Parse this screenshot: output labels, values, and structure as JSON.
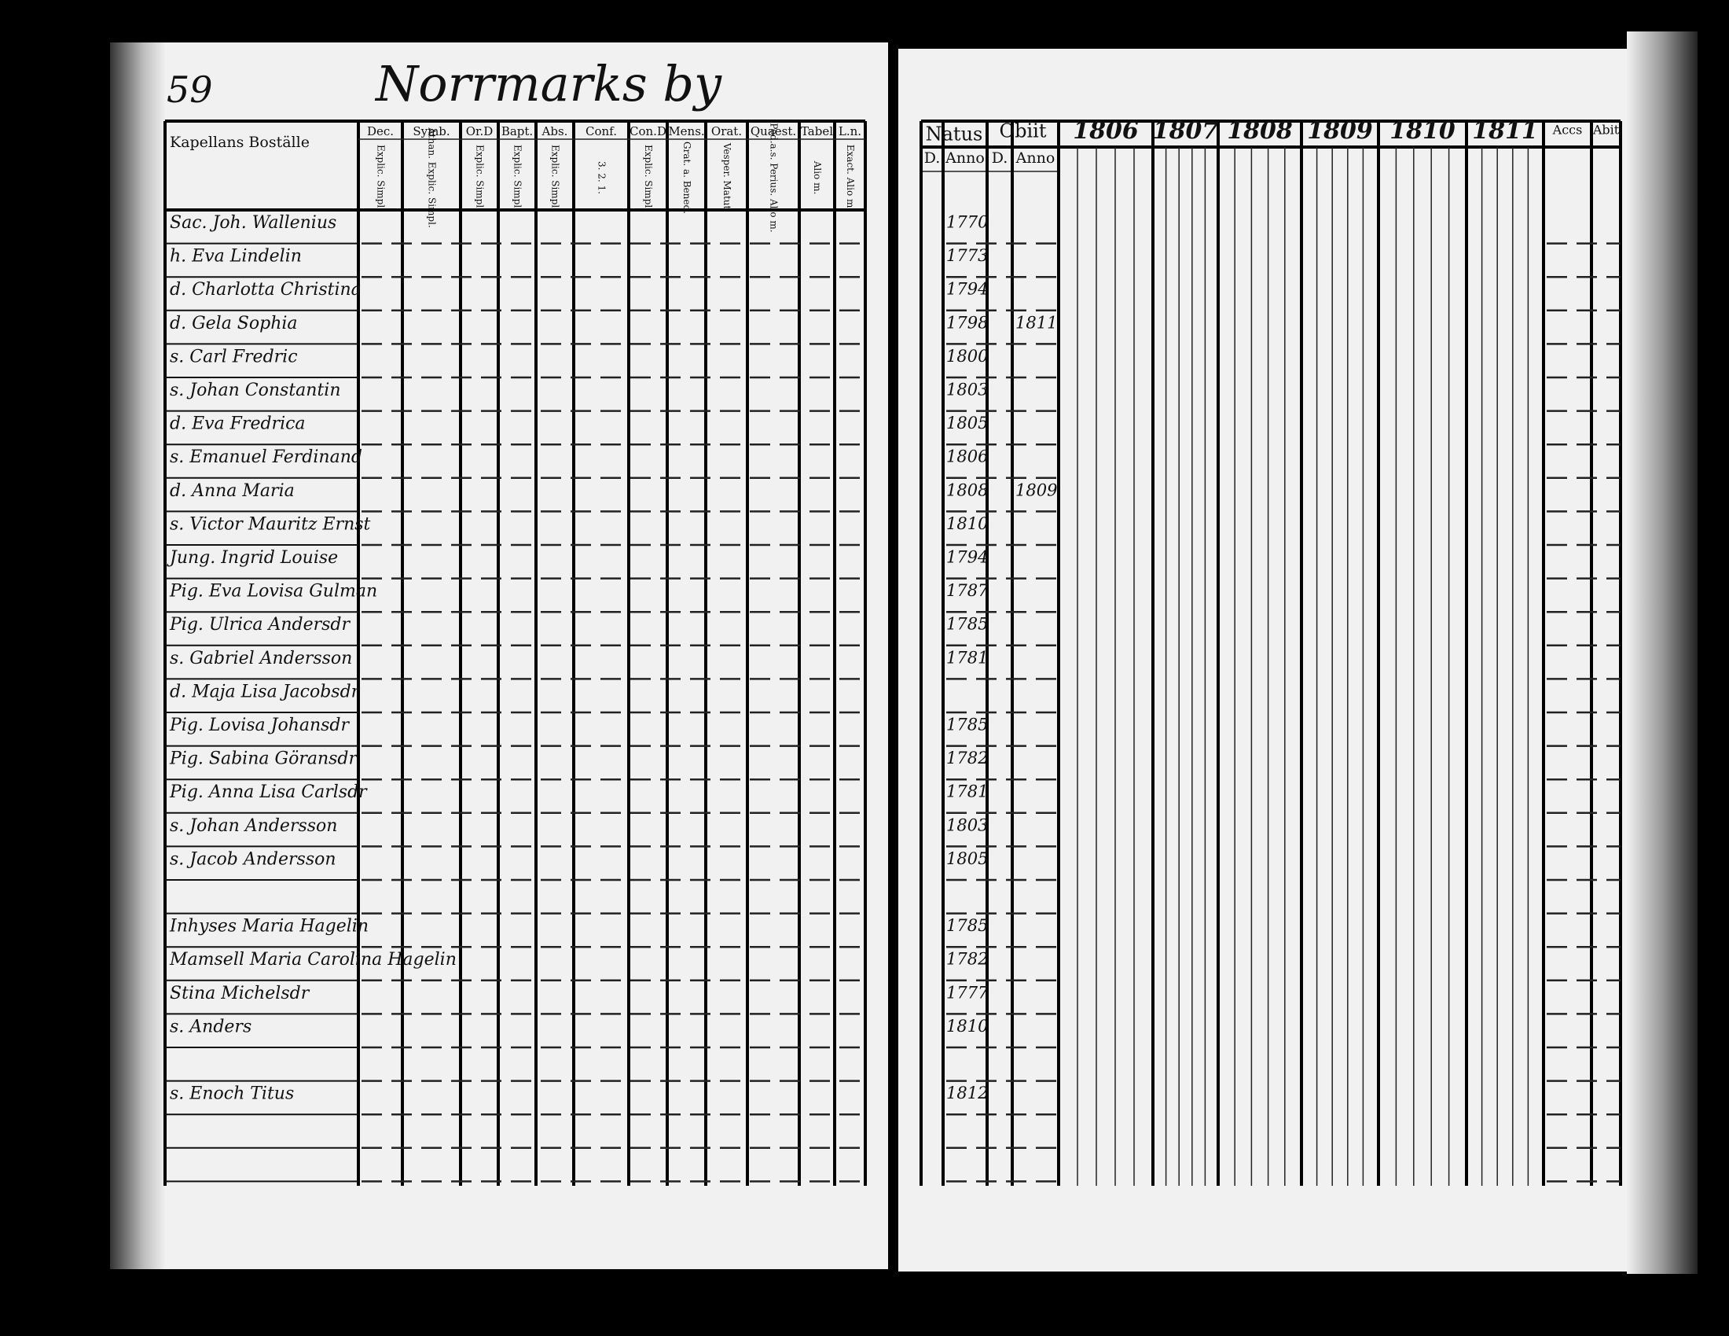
{
  "page_number": "59",
  "place_title": "Norrmarks by",
  "left": {
    "name_heading": "Kapellans Boställe",
    "columns": [
      {
        "title": "Dec.",
        "sub": "Explic. Simpl."
      },
      {
        "title": "Symb.",
        "sub": "Athan. Explic. Simpl."
      },
      {
        "title": "Or.D",
        "sub": "Explic. Simpl."
      },
      {
        "title": "Bapt.",
        "sub": "Explic. Simpl."
      },
      {
        "title": "Abs.",
        "sub": "Explic. Simpl."
      },
      {
        "title": "Conf.",
        "sub": "3. 2. 1."
      },
      {
        "title": "Con.D",
        "sub": "Explic. Simpl."
      },
      {
        "title": "Mens.",
        "sub": "Grat. a. Bened."
      },
      {
        "title": "Orat.",
        "sub": "Vesper. Matut."
      },
      {
        "title": "Quaest.",
        "sub": "Ped.a.s. Perius. Alio m."
      },
      {
        "title": "Tabel",
        "sub": "Alio m."
      },
      {
        "title": "L.n.",
        "sub": "Exact. Alio m."
      }
    ]
  },
  "right": {
    "natus": "Natus",
    "obiit": "Obiit",
    "day": "D.",
    "anno": "Anno",
    "years": [
      "1806",
      "1807",
      "1808",
      "1809",
      "1810",
      "1811"
    ],
    "accessit": "Accs",
    "abiit": "Abit"
  },
  "rows": [
    {
      "name": "Sac. Joh. Wallenius",
      "anno": "1770"
    },
    {
      "name": "h. Eva Lindelin",
      "anno": "1773"
    },
    {
      "name": "d. Charlotta Christina",
      "anno": "1794"
    },
    {
      "name": "d. Gela Sophia",
      "anno": "1798",
      "obiit": "1811"
    },
    {
      "name": "s. Carl Fredric",
      "anno": "1800"
    },
    {
      "name": "s. Johan Constantin",
      "anno": "1803"
    },
    {
      "name": "d. Eva Fredrica",
      "anno": "1805"
    },
    {
      "name": "s. Emanuel Ferdinand",
      "anno": "1806"
    },
    {
      "name": "d. Anna Maria",
      "anno": "1808",
      "obiit": "1809"
    },
    {
      "name": "s. Victor Mauritz Ernst",
      "anno": "1810"
    },
    {
      "name": "Jung. Ingrid Louise",
      "anno": "1794"
    },
    {
      "name": "Pig. Eva Lovisa Gulman",
      "anno": "1787"
    },
    {
      "name": "Pig. Ulrica Andersdr",
      "anno": "1785"
    },
    {
      "name": "s. Gabriel Andersson",
      "anno": "1781"
    },
    {
      "name": "d. Maja Lisa Jacobsdr"
    },
    {
      "name": "Pig. Lovisa Johansdr",
      "anno": "1785"
    },
    {
      "name": "Pig. Sabina Göransdr",
      "anno": "1782"
    },
    {
      "name": "Pig. Anna Lisa Carlsdr",
      "anno": "1781"
    },
    {
      "name": "s. Johan Andersson",
      "anno": "1803"
    },
    {
      "name": "s. Jacob Andersson",
      "anno": "1805"
    },
    {
      "name": "Inhyses Maria Hagelin",
      "anno": "1785"
    },
    {
      "name": "Mamsell Maria Carolina Hagelin",
      "anno": "1782"
    },
    {
      "name": "Stina Michelsdr",
      "anno": "1777"
    },
    {
      "name": "s. Anders",
      "anno": "1810"
    },
    {
      "name": "s. Enoch Titus",
      "anno": "1812"
    }
  ]
}
